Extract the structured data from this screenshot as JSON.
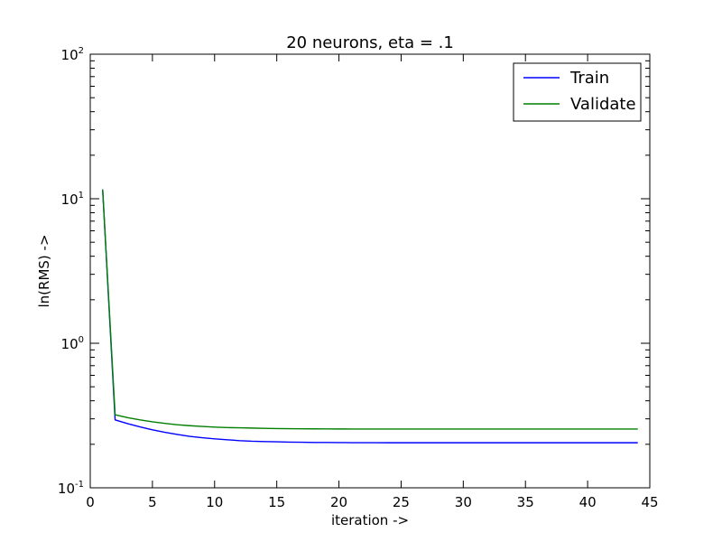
{
  "chart_data": {
    "type": "line",
    "title": "20 neurons, eta = .1",
    "xlabel": "iteration ->",
    "ylabel": "ln(RMS) ->",
    "xlim": [
      0,
      45
    ],
    "ylim": [
      0.1,
      100
    ],
    "yscale": "log",
    "x_ticks": [
      0,
      5,
      10,
      15,
      20,
      25,
      30,
      35,
      40,
      45
    ],
    "x_tick_labels": [
      "0",
      "5",
      "10",
      "15",
      "20",
      "25",
      "30",
      "35",
      "40",
      "45"
    ],
    "y_ticks": [
      0.1,
      1,
      10,
      100
    ],
    "y_tick_labels": [
      {
        "base": "10",
        "exp": "-1"
      },
      {
        "base": "10",
        "exp": "0"
      },
      {
        "base": "10",
        "exp": "1"
      },
      {
        "base": "10",
        "exp": "2"
      }
    ],
    "legend_position": "top-right",
    "grid": false,
    "series": [
      {
        "name": "Train",
        "color": "#0000ff",
        "x": [
          1,
          2,
          3,
          4,
          5,
          6,
          7,
          8,
          9,
          10,
          11,
          12,
          13,
          14,
          15,
          16,
          17,
          18,
          19,
          20,
          21,
          22,
          23,
          24,
          25,
          26,
          27,
          28,
          29,
          30,
          31,
          32,
          33,
          34,
          35,
          36,
          37,
          38,
          39,
          40,
          41,
          42,
          43,
          44
        ],
        "values": [
          11.5,
          0.295,
          0.278,
          0.264,
          0.252,
          0.242,
          0.234,
          0.227,
          0.222,
          0.218,
          0.215,
          0.212,
          0.21,
          0.209,
          0.208,
          0.207,
          0.2065,
          0.206,
          0.2058,
          0.2055,
          0.2053,
          0.2052,
          0.2051,
          0.205,
          0.205,
          0.205,
          0.205,
          0.205,
          0.205,
          0.205,
          0.205,
          0.205,
          0.205,
          0.205,
          0.205,
          0.205,
          0.205,
          0.205,
          0.205,
          0.205,
          0.205,
          0.205,
          0.205,
          0.205
        ]
      },
      {
        "name": "Validate",
        "color": "#008000",
        "x": [
          1,
          2,
          3,
          4,
          5,
          6,
          7,
          8,
          9,
          10,
          11,
          12,
          13,
          14,
          15,
          16,
          17,
          18,
          19,
          20,
          21,
          22,
          23,
          24,
          25,
          26,
          27,
          28,
          29,
          30,
          31,
          32,
          33,
          34,
          35,
          36,
          37,
          38,
          39,
          40,
          41,
          42,
          43,
          44
        ],
        "values": [
          11.5,
          0.32,
          0.306,
          0.295,
          0.286,
          0.279,
          0.273,
          0.269,
          0.266,
          0.263,
          0.261,
          0.26,
          0.259,
          0.258,
          0.257,
          0.2565,
          0.256,
          0.2558,
          0.2555,
          0.2553,
          0.2552,
          0.2551,
          0.255,
          0.255,
          0.255,
          0.255,
          0.255,
          0.255,
          0.255,
          0.255,
          0.255,
          0.255,
          0.255,
          0.255,
          0.255,
          0.255,
          0.255,
          0.255,
          0.255,
          0.255,
          0.255,
          0.255,
          0.255,
          0.255
        ]
      }
    ]
  }
}
